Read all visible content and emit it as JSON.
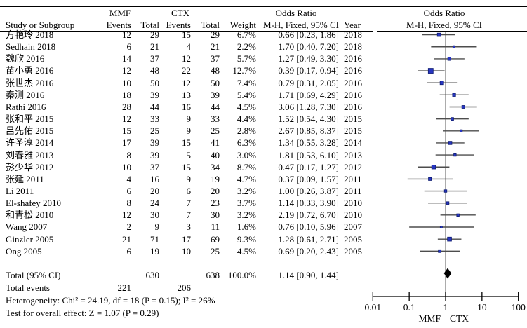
{
  "colors": {
    "square": "#2735c2",
    "square_border": "#0f1d73",
    "ci_line": "#4d4d4d",
    "null_line": "#7f7f7f",
    "axis": "#000000",
    "diamond": "#000000",
    "rule": "#000000"
  },
  "header": {
    "study_col": "Study or Subgroup",
    "mmf_group": "MMF",
    "ctx_group": "CTX",
    "events_col": "Events",
    "total_col": "Total",
    "weight_col": "Weight",
    "year_col": "Year",
    "or_title": "Odds Ratio",
    "or_subtitle": "M-H, Fixed, 95% CI"
  },
  "chart_data": {
    "type": "forest",
    "effect_measure": "Odds Ratio",
    "method": "M-H, Fixed, 95% CI",
    "groups": {
      "experimental": "MMF",
      "control": "CTX"
    },
    "studies": [
      {
        "label": "方艳玲 2018",
        "mmf_events": 12,
        "mmf_total": 29,
        "ctx_events": 15,
        "ctx_total": 29,
        "weight_pct": 6.7,
        "or": 0.66,
        "ci_low": 0.23,
        "ci_high": 1.86,
        "year": 2018
      },
      {
        "label": "Sedhain 2018",
        "mmf_events": 6,
        "mmf_total": 21,
        "ctx_events": 4,
        "ctx_total": 21,
        "weight_pct": 2.2,
        "or": 1.7,
        "ci_low": 0.4,
        "ci_high": 7.2,
        "year": 2018
      },
      {
        "label": "魏欣 2016",
        "mmf_events": 14,
        "mmf_total": 37,
        "ctx_events": 12,
        "ctx_total": 37,
        "weight_pct": 5.7,
        "or": 1.27,
        "ci_low": 0.49,
        "ci_high": 3.3,
        "year": 2016
      },
      {
        "label": "苗小勇 2016",
        "mmf_events": 12,
        "mmf_total": 48,
        "ctx_events": 22,
        "ctx_total": 48,
        "weight_pct": 12.7,
        "or": 0.39,
        "ci_low": 0.17,
        "ci_high": 0.94,
        "year": 2016
      },
      {
        "label": "张世杰 2016",
        "mmf_events": 10,
        "mmf_total": 50,
        "ctx_events": 12,
        "ctx_total": 50,
        "weight_pct": 7.4,
        "or": 0.79,
        "ci_low": 0.31,
        "ci_high": 2.05,
        "year": 2016
      },
      {
        "label": "秦测 2016",
        "mmf_events": 18,
        "mmf_total": 39,
        "ctx_events": 13,
        "ctx_total": 39,
        "weight_pct": 5.4,
        "or": 1.71,
        "ci_low": 0.69,
        "ci_high": 4.29,
        "year": 2016
      },
      {
        "label": "Rathi 2016",
        "mmf_events": 28,
        "mmf_total": 44,
        "ctx_events": 16,
        "ctx_total": 44,
        "weight_pct": 4.5,
        "or": 3.06,
        "ci_low": 1.28,
        "ci_high": 7.3,
        "year": 2016
      },
      {
        "label": "张和平 2015",
        "mmf_events": 12,
        "mmf_total": 33,
        "ctx_events": 9,
        "ctx_total": 33,
        "weight_pct": 4.4,
        "or": 1.52,
        "ci_low": 0.54,
        "ci_high": 4.3,
        "year": 2015
      },
      {
        "label": "吕先佑 2015",
        "mmf_events": 15,
        "mmf_total": 25,
        "ctx_events": 9,
        "ctx_total": 25,
        "weight_pct": 2.8,
        "or": 2.67,
        "ci_low": 0.85,
        "ci_high": 8.37,
        "year": 2015
      },
      {
        "label": "许圣淳 2014",
        "mmf_events": 17,
        "mmf_total": 39,
        "ctx_events": 15,
        "ctx_total": 41,
        "weight_pct": 6.3,
        "or": 1.34,
        "ci_low": 0.55,
        "ci_high": 3.28,
        "year": 2014
      },
      {
        "label": "刘春雅 2013",
        "mmf_events": 8,
        "mmf_total": 39,
        "ctx_events": 5,
        "ctx_total": 40,
        "weight_pct": 3.0,
        "or": 1.81,
        "ci_low": 0.53,
        "ci_high": 6.1,
        "year": 2013
      },
      {
        "label": "彭少华 2012",
        "mmf_events": 10,
        "mmf_total": 37,
        "ctx_events": 15,
        "ctx_total": 34,
        "weight_pct": 8.7,
        "or": 0.47,
        "ci_low": 0.17,
        "ci_high": 1.27,
        "year": 2012
      },
      {
        "label": "张延 2011",
        "mmf_events": 4,
        "mmf_total": 16,
        "ctx_events": 9,
        "ctx_total": 19,
        "weight_pct": 4.7,
        "or": 0.37,
        "ci_low": 0.09,
        "ci_high": 1.57,
        "year": 2011
      },
      {
        "label": "Li 2011",
        "mmf_events": 6,
        "mmf_total": 20,
        "ctx_events": 6,
        "ctx_total": 20,
        "weight_pct": 3.2,
        "or": 1.0,
        "ci_low": 0.26,
        "ci_high": 3.87,
        "year": 2011
      },
      {
        "label": "El-shafey 2010",
        "mmf_events": 8,
        "mmf_total": 24,
        "ctx_events": 7,
        "ctx_total": 23,
        "weight_pct": 3.7,
        "or": 1.14,
        "ci_low": 0.33,
        "ci_high": 3.9,
        "year": 2010
      },
      {
        "label": "和青松 2010",
        "mmf_events": 12,
        "mmf_total": 30,
        "ctx_events": 7,
        "ctx_total": 30,
        "weight_pct": 3.2,
        "or": 2.19,
        "ci_low": 0.72,
        "ci_high": 6.7,
        "year": 2010
      },
      {
        "label": "Wang 2007",
        "mmf_events": 2,
        "mmf_total": 9,
        "ctx_events": 3,
        "ctx_total": 11,
        "weight_pct": 1.6,
        "or": 0.76,
        "ci_low": 0.1,
        "ci_high": 5.96,
        "year": 2007
      },
      {
        "label": "Ginzler 2005",
        "mmf_events": 21,
        "mmf_total": 71,
        "ctx_events": 17,
        "ctx_total": 69,
        "weight_pct": 9.3,
        "or": 1.28,
        "ci_low": 0.61,
        "ci_high": 2.71,
        "year": 2005
      },
      {
        "label": "Ong 2005",
        "mmf_events": 6,
        "mmf_total": 19,
        "ctx_events": 10,
        "ctx_total": 25,
        "weight_pct": 4.5,
        "or": 0.69,
        "ci_low": 0.2,
        "ci_high": 2.43,
        "year": 2005
      }
    ],
    "total": {
      "label": "Total (95% CI)",
      "mmf_total": 630,
      "ctx_total": 638,
      "weight_pct": 100.0,
      "or": 1.14,
      "ci_low": 0.9,
      "ci_high": 1.44
    },
    "total_events": {
      "label": "Total events",
      "mmf": 221,
      "ctx": 206
    },
    "heterogeneity": "Heterogeneity: Chi² = 24.19, df = 18 (P = 0.15); I² = 26%",
    "overall_effect": "Test for overall effect: Z = 1.07 (P = 0.29)",
    "axis": {
      "scale": "log",
      "tick_labels": [
        "0.01",
        "0.1",
        "1",
        "10",
        "100"
      ],
      "tick_values": [
        0.01,
        0.1,
        1,
        10,
        100
      ],
      "xlim": [
        0.01,
        100
      ],
      "left_label": "MMF",
      "right_label": "CTX"
    }
  }
}
